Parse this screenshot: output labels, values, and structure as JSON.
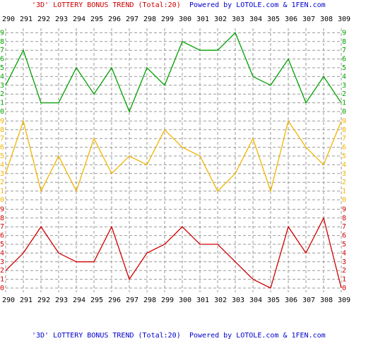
{
  "chart_data": {
    "type": "line",
    "title": "'3D' LOTTERY BONUS TREND (Total:20)",
    "subtitle": "Powered by LOTOLE.com & 1FEN.com",
    "categories": [
      "290",
      "291",
      "292",
      "293",
      "294",
      "295",
      "296",
      "297",
      "298",
      "299",
      "300",
      "301",
      "302",
      "303",
      "304",
      "305",
      "306",
      "307",
      "308",
      "309"
    ],
    "ylim": [
      0,
      9
    ],
    "yticks": [
      0,
      1,
      2,
      3,
      4,
      5,
      6,
      7,
      8,
      9
    ],
    "grid": true,
    "series": [
      {
        "color": "#00a000",
        "values": [
          3,
          7,
          1,
          1,
          5,
          2,
          5,
          0,
          5,
          3,
          8,
          7,
          7,
          9,
          4,
          3,
          6,
          1,
          4,
          1
        ]
      },
      {
        "color": "#f0b400",
        "values": [
          3,
          9,
          1,
          5,
          1,
          7,
          3,
          5,
          4,
          8,
          6,
          5,
          1,
          3,
          7,
          1,
          9,
          6,
          4,
          9
        ]
      },
      {
        "color": "#d00000",
        "values": [
          2,
          4,
          7,
          4,
          3,
          3,
          7,
          1,
          4,
          5,
          7,
          5,
          5,
          3,
          1,
          0,
          7,
          4,
          8,
          0
        ]
      }
    ]
  }
}
